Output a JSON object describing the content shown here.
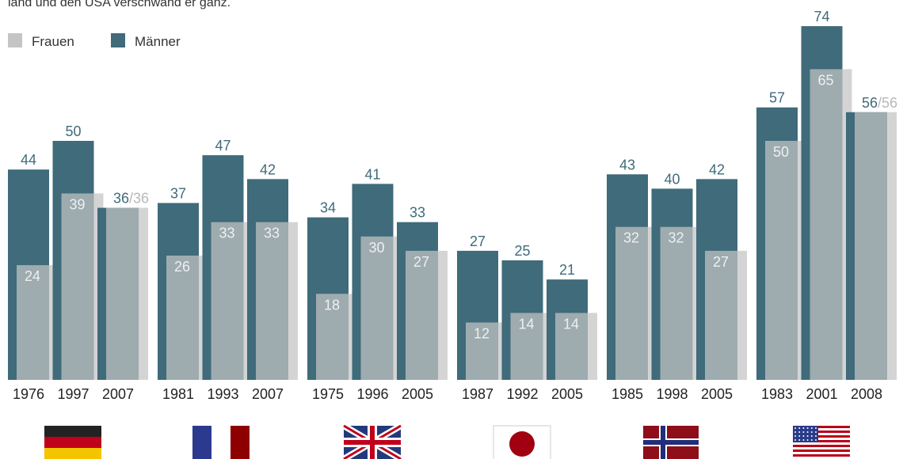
{
  "chart_data": {
    "type": "bar",
    "subtitle": "land und den USA verschwand er ganz.",
    "categories": [
      [
        "1976",
        "1997",
        "2007"
      ],
      [
        "1981",
        "1993",
        "2007"
      ],
      [
        "1975",
        "1996",
        "2005"
      ],
      [
        "1987",
        "1992",
        "2005"
      ],
      [
        "1985",
        "1998",
        "2005"
      ],
      [
        "1983",
        "2001",
        "2008"
      ]
    ],
    "series": [
      {
        "name": "Frauen",
        "color": "#c4c4c4",
        "values": [
          [
            24,
            39,
            36
          ],
          [
            26,
            33,
            33
          ],
          [
            18,
            30,
            27
          ],
          [
            12,
            14,
            14
          ],
          [
            32,
            32,
            27
          ],
          [
            50,
            65,
            56
          ]
        ],
        "value_labels": [
          [
            "24",
            "39",
            "/36"
          ],
          [
            "26",
            "33",
            "33"
          ],
          [
            "18",
            "30",
            "27"
          ],
          [
            "12",
            "14",
            "14"
          ],
          [
            "32",
            "32",
            "27"
          ],
          [
            "50",
            "65",
            "/56"
          ]
        ]
      },
      {
        "name": "Männer",
        "color": "#3f6b7a",
        "values": [
          [
            44,
            50,
            36
          ],
          [
            37,
            47,
            42
          ],
          [
            34,
            41,
            33
          ],
          [
            27,
            25,
            21
          ],
          [
            43,
            40,
            42
          ],
          [
            57,
            74,
            56
          ]
        ]
      }
    ]
  }
}
